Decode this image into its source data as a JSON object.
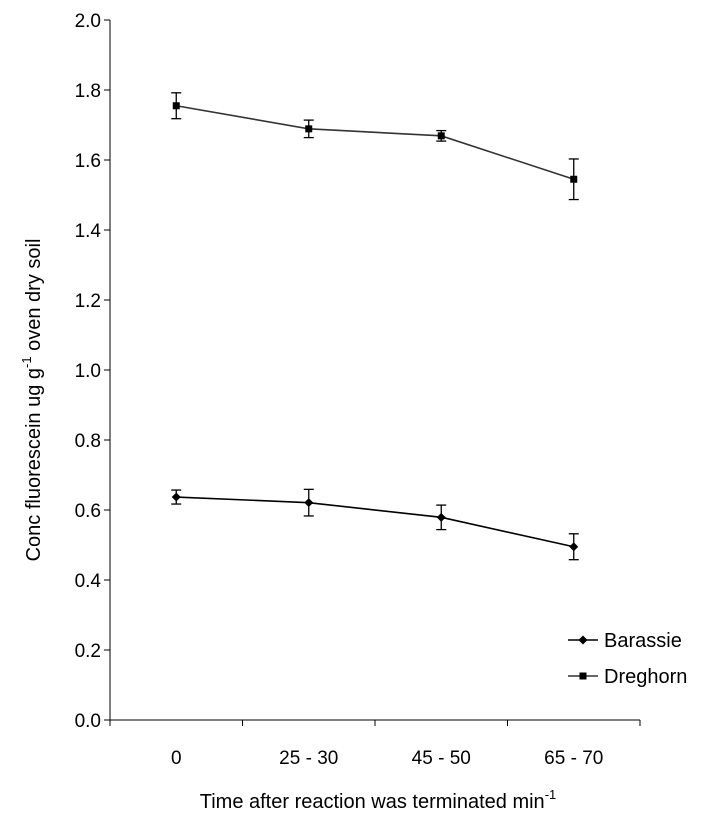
{
  "chart_data": {
    "type": "line",
    "categories": [
      "0",
      "25 - 30",
      "45 - 50",
      "65 - 70"
    ],
    "xlabel": "Time after reaction was terminated min",
    "xlabel_sup": "-1",
    "ylabel_pre": "Conc fluorescein ug g",
    "ylabel_sup": "-1",
    "ylabel_post": " oven dry soil",
    "ylim": [
      0,
      2.0
    ],
    "yticks": [
      "0.0",
      "0.2",
      "0.4",
      "0.6",
      "0.8",
      "1.0",
      "1.2",
      "1.4",
      "1.6",
      "1.8",
      "2.0"
    ],
    "ytick_values": [
      0,
      0.2,
      0.4,
      0.6,
      0.8,
      1.0,
      1.2,
      1.4,
      1.6,
      1.8,
      2.0
    ],
    "grid": false,
    "legend_position": "bottom-right",
    "series": [
      {
        "name": "Barassie",
        "marker": "diamond",
        "color": "#000000",
        "values": [
          0.637,
          0.621,
          0.579,
          0.495
        ],
        "errors": [
          0.02,
          0.038,
          0.035,
          0.037
        ]
      },
      {
        "name": "Dreghorn",
        "marker": "square",
        "color": "#333333",
        "values": [
          1.755,
          1.689,
          1.669,
          1.545
        ],
        "errors": [
          0.037,
          0.025,
          0.015,
          0.058
        ]
      }
    ]
  }
}
